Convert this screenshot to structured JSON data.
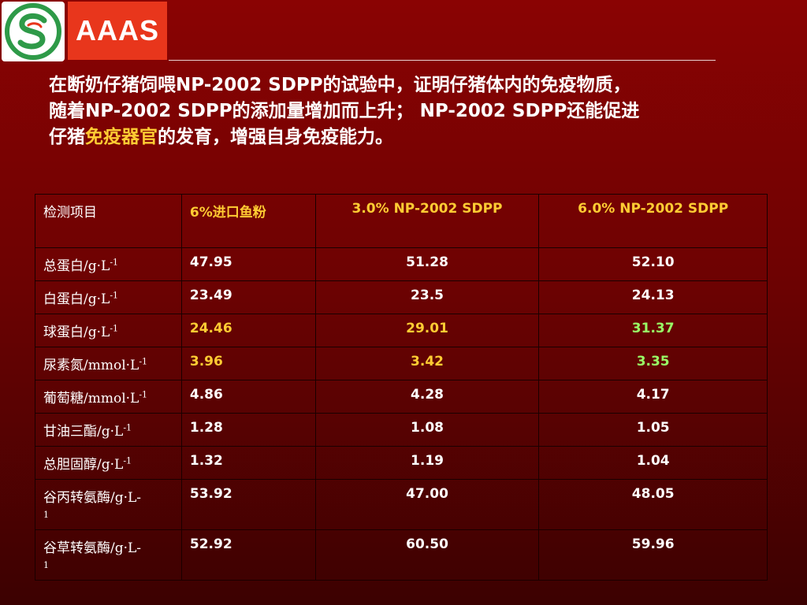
{
  "logo": {
    "text": "AAAS",
    "circle_icon": "s-leaf-emblem-icon"
  },
  "intro": {
    "p1": "在断奶仔猪饲喂",
    "p2": "NP-2002 SDPP",
    "p3": "的试验中，证明仔猪体内的免疫物质，",
    "p4": "随着",
    "p5": "NP-2002 SDPP",
    "p6": "的添加量增加而上升；",
    "p7": "NP-2002 SDPP",
    "p8": "还能促进",
    "p9": "仔猪",
    "p10": "免疫器官",
    "p11": "的发育，增强自身免疫能力。"
  },
  "table": {
    "headers": [
      "检测项目",
      "6%进口鱼粉",
      "3.0% NP-2002 SDPP",
      "6.0% NP-2002 SDPP"
    ],
    "rows": [
      {
        "label": "总蛋白/g·L",
        "sup": "-1",
        "v1": "47.95",
        "v2": "51.28",
        "v3": "52.10"
      },
      {
        "label": "白蛋白/g·L",
        "sup": "-1",
        "v1": "23.49",
        "v2": "23.5",
        "v3": "24.13"
      },
      {
        "label": "球蛋白/g·L",
        "sup": "-1",
        "v1": "24.46",
        "v2": "29.01",
        "v3": "31.37"
      },
      {
        "label": "尿素氮/mmol·L",
        "sup": "-1",
        "v1": "3.96",
        "v2": "3.42",
        "v3": "3.35"
      },
      {
        "label": "葡萄糖/mmol·L",
        "sup": "-1",
        "v1": "4.86",
        "v2": "4.28",
        "v3": "4.17"
      },
      {
        "label": "甘油三酯/g·L",
        "sup": "-1",
        "v1": "1.28",
        "v2": "1.08",
        "v3": "1.05"
      },
      {
        "label": "总胆固醇/g·L",
        "sup": "-1",
        "v1": "1.32",
        "v2": "1.19",
        "v3": "1.04"
      },
      {
        "label": "谷丙转氨酶/g·L-",
        "sup": "1",
        "v1": "53.92",
        "v2": "47.00",
        "v3": "48.05"
      },
      {
        "label": "谷草转氨酶/g·L-",
        "sup": "1",
        "v1": "52.92",
        "v2": "60.50",
        "v3": "59.96"
      }
    ]
  },
  "colors": {
    "highlight": "#ffcc33",
    "green": "#99ff66",
    "background": "#7a0202"
  }
}
